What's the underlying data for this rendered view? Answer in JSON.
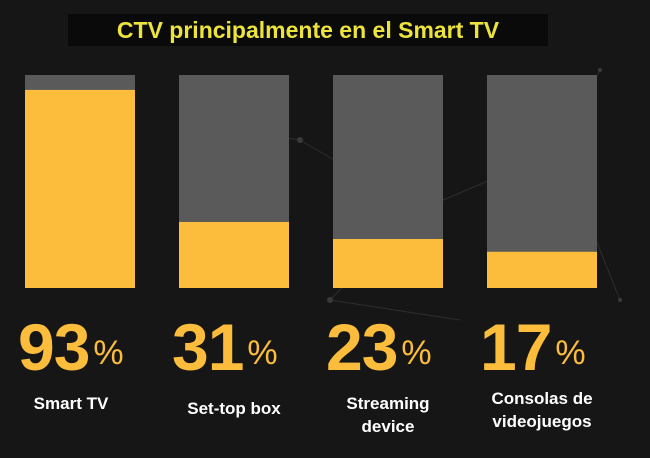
{
  "chart_data": {
    "type": "bar",
    "title": "CTV principalmente en el Smart TV",
    "categories": [
      "Smart TV",
      "Set-top box",
      "Streaming device",
      "Consolas de videojuegos"
    ],
    "values": [
      93,
      31,
      23,
      17
    ],
    "value_unit": "%",
    "color": "#fbbd3b",
    "track_color": "#5a5a5a",
    "ylim": [
      0,
      100
    ]
  }
}
